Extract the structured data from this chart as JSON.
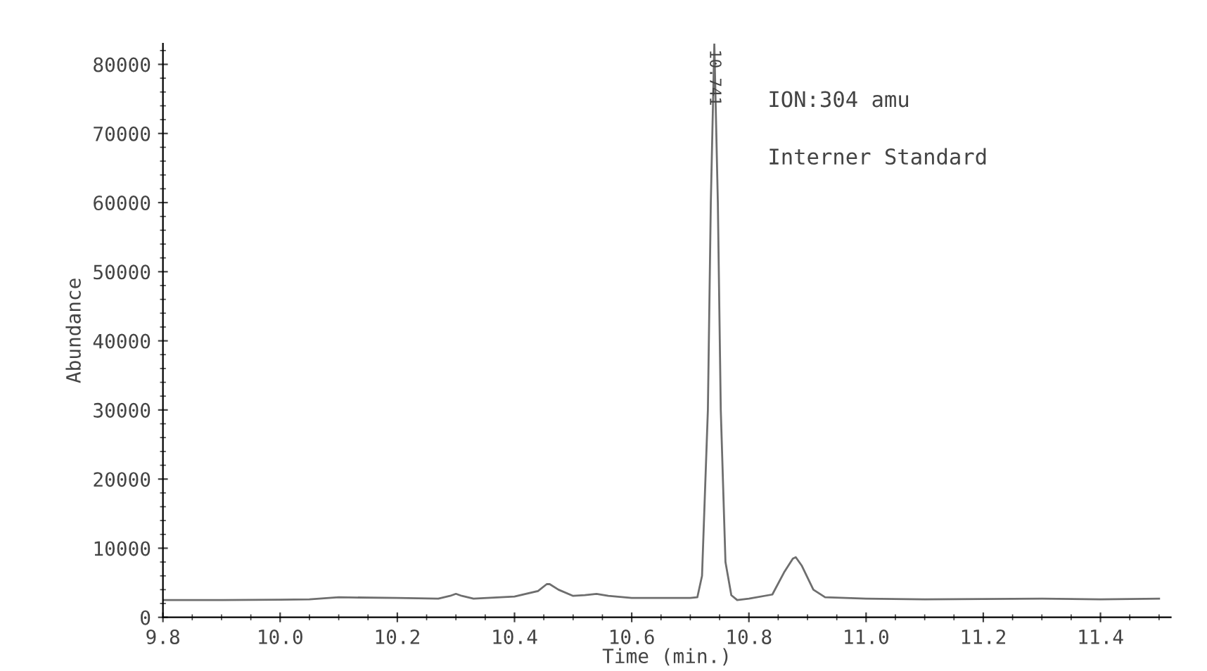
{
  "chart_data": {
    "type": "line",
    "xlabel": "Time (min.)",
    "ylabel": "Abundance",
    "xlim": [
      9.8,
      11.52
    ],
    "ylim": [
      0,
      83000
    ],
    "xticks": [
      {
        "value": 9.8,
        "label": "9.8"
      },
      {
        "value": 10.0,
        "label": "10.0"
      },
      {
        "value": 10.2,
        "label": "10.2"
      },
      {
        "value": 10.4,
        "label": "10.4"
      },
      {
        "value": 10.6,
        "label": "10.6"
      },
      {
        "value": 10.8,
        "label": "10.8"
      },
      {
        "value": 11.0,
        "label": "11.0"
      },
      {
        "value": 11.2,
        "label": "11.2"
      },
      {
        "value": 11.4,
        "label": "11.4"
      }
    ],
    "yticks": [
      0,
      10000,
      20000,
      30000,
      40000,
      50000,
      60000,
      70000,
      80000
    ],
    "grid": false,
    "marker": "none",
    "line_style": "solid",
    "series": [
      {
        "color": "#6e6e6e",
        "x": [
          9.8,
          9.9,
          10.0,
          10.05,
          10.1,
          10.2,
          10.27,
          10.29,
          10.3,
          10.31,
          10.33,
          10.4,
          10.44,
          10.455,
          10.46,
          10.475,
          10.5,
          10.52,
          10.54,
          10.56,
          10.6,
          10.65,
          10.7,
          10.712,
          10.72,
          10.73,
          10.735,
          10.741,
          10.747,
          10.752,
          10.76,
          10.77,
          10.78,
          10.8,
          10.84,
          10.86,
          10.875,
          10.88,
          10.89,
          10.91,
          10.93,
          11.0,
          11.1,
          11.2,
          11.3,
          11.4,
          11.5
        ],
        "values": [
          2500,
          2500,
          2550,
          2600,
          2900,
          2800,
          2700,
          3100,
          3400,
          3100,
          2700,
          3000,
          3800,
          4800,
          4800,
          4000,
          3100,
          3200,
          3400,
          3100,
          2800,
          2800,
          2800,
          2900,
          6000,
          30000,
          60000,
          83000,
          60000,
          30000,
          8000,
          3200,
          2500,
          2700,
          3300,
          6500,
          8500,
          8700,
          7500,
          4000,
          2900,
          2700,
          2600,
          2650,
          2700,
          2600,
          2700
        ]
      }
    ],
    "annotations": [
      {
        "text": "10.741",
        "x": 10.741,
        "y": 83000
      },
      "ION:304 amu",
      "Interner Standard"
    ]
  }
}
